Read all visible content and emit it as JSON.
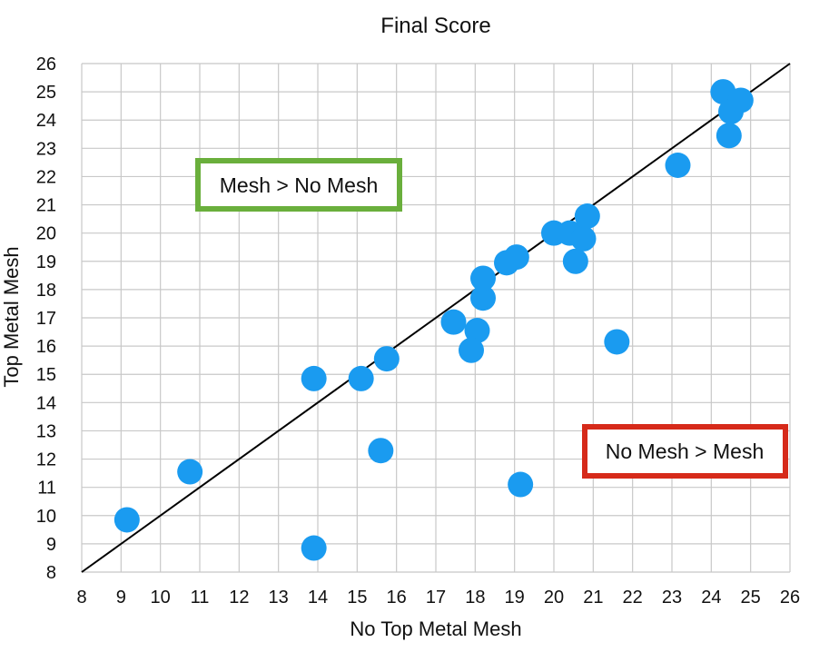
{
  "chart_data": {
    "type": "scatter",
    "title": "Final Score",
    "xlabel": "No Top Metal Mesh",
    "ylabel": "Top Metal Mesh",
    "xlim": [
      8,
      26
    ],
    "ylim": [
      8,
      26
    ],
    "xticks": [
      8,
      9,
      10,
      11,
      12,
      13,
      14,
      15,
      16,
      17,
      18,
      19,
      20,
      21,
      22,
      23,
      24,
      25,
      26
    ],
    "yticks": [
      8,
      9,
      10,
      11,
      12,
      13,
      14,
      15,
      16,
      17,
      18,
      19,
      20,
      21,
      22,
      23,
      24,
      25,
      26
    ],
    "grid": true,
    "reference_line": {
      "from": [
        8,
        8
      ],
      "to": [
        26,
        26
      ]
    },
    "point_color": "#1a9bf0",
    "points": [
      {
        "x": 9.15,
        "y": 9.85
      },
      {
        "x": 10.75,
        "y": 11.55
      },
      {
        "x": 13.9,
        "y": 14.85
      },
      {
        "x": 13.9,
        "y": 8.85
      },
      {
        "x": 15.1,
        "y": 14.85
      },
      {
        "x": 15.75,
        "y": 15.55
      },
      {
        "x": 15.6,
        "y": 12.3
      },
      {
        "x": 17.45,
        "y": 16.85
      },
      {
        "x": 18.05,
        "y": 16.55
      },
      {
        "x": 17.9,
        "y": 15.85
      },
      {
        "x": 18.2,
        "y": 17.7
      },
      {
        "x": 18.2,
        "y": 18.4
      },
      {
        "x": 18.8,
        "y": 18.95
      },
      {
        "x": 19.05,
        "y": 19.15
      },
      {
        "x": 19.15,
        "y": 11.1
      },
      {
        "x": 20.0,
        "y": 20.0
      },
      {
        "x": 20.4,
        "y": 20.0
      },
      {
        "x": 20.75,
        "y": 19.8
      },
      {
        "x": 20.55,
        "y": 19.0
      },
      {
        "x": 20.85,
        "y": 20.6
      },
      {
        "x": 21.6,
        "y": 16.15
      },
      {
        "x": 23.15,
        "y": 22.4
      },
      {
        "x": 24.3,
        "y": 25.0
      },
      {
        "x": 24.5,
        "y": 24.3
      },
      {
        "x": 24.75,
        "y": 24.7
      },
      {
        "x": 24.45,
        "y": 23.45
      }
    ],
    "annotations": [
      {
        "text": "Mesh > No Mesh",
        "color": "#6aaf3c"
      },
      {
        "text": "No Mesh > Mesh",
        "color": "#d62a1a"
      }
    ]
  }
}
